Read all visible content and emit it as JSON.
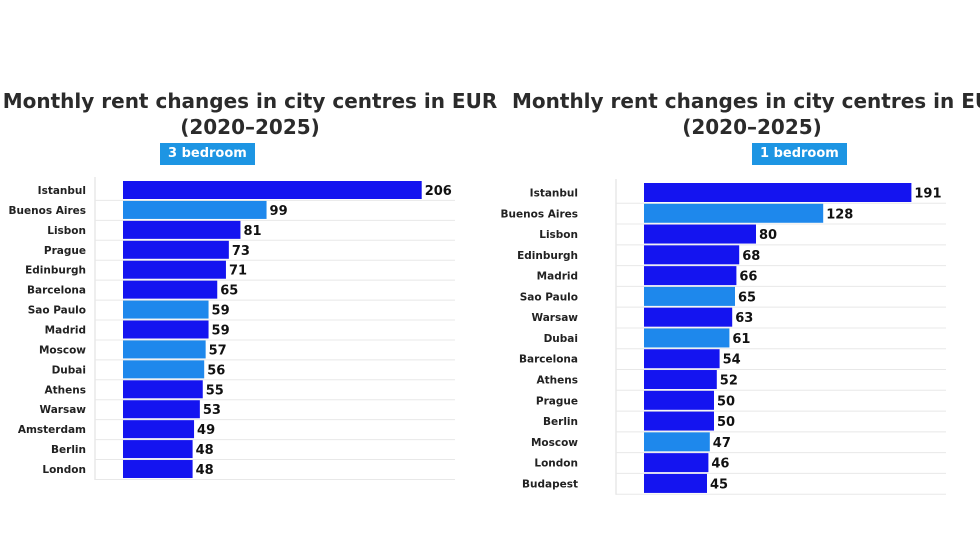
{
  "colors": {
    "primary_bar": "#1414f0",
    "secondary_bar": "#1e88ec",
    "badge": "#1d95e3"
  },
  "chart_data": [
    {
      "type": "bar",
      "orientation": "horizontal",
      "title": "Monthly rent changes in city centres in EUR",
      "subtitle": "(2020–2025)",
      "badge": "3 bedroom",
      "categories": [
        "Istanbul",
        "Buenos Aires",
        "Lisbon",
        "Prague",
        "Edinburgh",
        "Barcelona",
        "Sao Paulo",
        "Madrid",
        "Moscow",
        "Dubai",
        "Athens",
        "Warsaw",
        "Amsterdam",
        "Berlin",
        "London"
      ],
      "values": [
        206,
        99,
        81,
        73,
        71,
        65,
        59,
        59,
        57,
        56,
        55,
        53,
        49,
        48,
        48
      ],
      "bar_colors": [
        "#1414f0",
        "#1e88ec",
        "#1414f0",
        "#1414f0",
        "#1414f0",
        "#1414f0",
        "#1e88ec",
        "#1414f0",
        "#1e88ec",
        "#1e88ec",
        "#1414f0",
        "#1414f0",
        "#1414f0",
        "#1414f0",
        "#1414f0"
      ],
      "xlim": [
        0,
        230
      ],
      "grid": true,
      "legend": "none"
    },
    {
      "type": "bar",
      "orientation": "horizontal",
      "title": "Monthly rent changes in city centres in EU",
      "subtitle": "(2020–2025)",
      "badge": "1 bedroom",
      "categories": [
        "Istanbul",
        "Buenos Aires",
        "Lisbon",
        "Edinburgh",
        "Madrid",
        "Sao Paulo",
        "Warsaw",
        "Dubai",
        "Barcelona",
        "Athens",
        "Prague",
        "Berlin",
        "Moscow",
        "London",
        "Budapest"
      ],
      "values": [
        191,
        128,
        80,
        68,
        66,
        65,
        63,
        61,
        54,
        52,
        50,
        50,
        47,
        46,
        45
      ],
      "bar_colors": [
        "#1414f0",
        "#1e88ec",
        "#1414f0",
        "#1414f0",
        "#1414f0",
        "#1e88ec",
        "#1414f0",
        "#1e88ec",
        "#1414f0",
        "#1414f0",
        "#1414f0",
        "#1414f0",
        "#1e88ec",
        "#1414f0",
        "#1414f0"
      ],
      "xlim": [
        0,
        210
      ],
      "grid": true,
      "legend": "none"
    }
  ]
}
